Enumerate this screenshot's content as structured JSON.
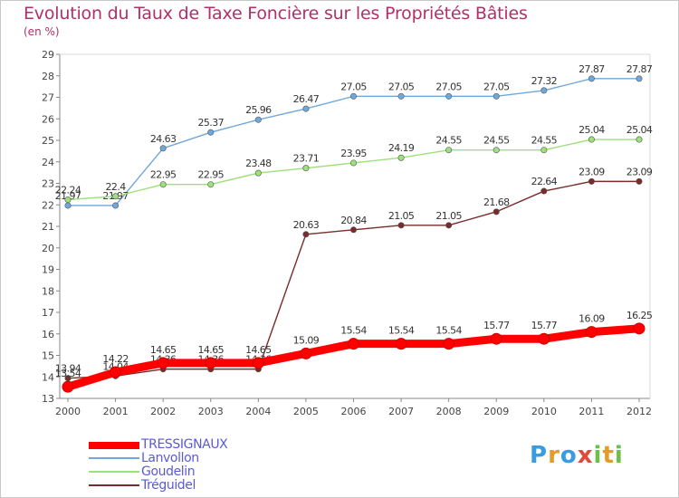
{
  "header": {
    "title": "Evolution du Taux de Taxe Foncière sur les Propriétés Bâties",
    "subtitle": "(en %)"
  },
  "logo": {
    "text": "Proxiti",
    "letters": [
      "P",
      "r",
      "o",
      "x",
      "i",
      "t",
      "i"
    ]
  },
  "chart_data": {
    "type": "line",
    "categories": [
      "2000",
      "2001",
      "2002",
      "2003",
      "2004",
      "2005",
      "2006",
      "2007",
      "2008",
      "2009",
      "2010",
      "2011",
      "2012"
    ],
    "ylim": [
      13,
      29
    ],
    "yticks": [
      13,
      14,
      15,
      16,
      17,
      18,
      19,
      20,
      21,
      22,
      23,
      24,
      25,
      26,
      27,
      28,
      29
    ],
    "grid": false,
    "legend_position": "bottom-left",
    "series": [
      {
        "name": "TRESSIGNAUX",
        "color": "#ff0000",
        "values": [
          13.54,
          14.22,
          14.65,
          14.65,
          14.65,
          15.09,
          15.54,
          15.54,
          15.54,
          15.77,
          15.77,
          16.09,
          16.25
        ],
        "labels": [
          "13.54",
          "14.22",
          "14.65",
          "14.65",
          "14.65",
          "15.09",
          "15.54",
          "15.54",
          "15.54",
          "15.77",
          "15.77",
          "16.09",
          "16.25"
        ]
      },
      {
        "name": "Lanvollon",
        "color": "#6fa8dc",
        "values": [
          21.97,
          21.97,
          24.63,
          25.37,
          25.96,
          26.47,
          27.05,
          27.05,
          27.05,
          27.05,
          27.32,
          27.87,
          27.87
        ],
        "labels": [
          "21.97",
          "21.97",
          "24.63",
          "25.37",
          "25.96",
          "26.47",
          "27.05",
          "27.05",
          "27.05",
          "27.05",
          "27.32",
          "27.87",
          "27.87"
        ]
      },
      {
        "name": "Goudelin",
        "color": "#9ee07a",
        "values": [
          22.24,
          22.4,
          22.95,
          22.95,
          23.48,
          23.71,
          23.95,
          24.19,
          24.55,
          24.55,
          24.55,
          25.04,
          25.04
        ],
        "labels": [
          "22.24",
          "22.4",
          "22.95",
          "22.95",
          "23.48",
          "23.71",
          "23.95",
          "24.19",
          "24.55",
          "24.55",
          "24.55",
          "25.04",
          "25.04"
        ]
      },
      {
        "name": "Tréguidel",
        "color": "#7a2b2b",
        "values": [
          13.94,
          14.04,
          14.36,
          14.36,
          14.36,
          20.63,
          20.84,
          21.05,
          21.05,
          21.68,
          22.64,
          23.09,
          23.09
        ],
        "labels": [
          "13.94",
          "14.04",
          "14.36",
          "14.36",
          "14.36",
          "20.63",
          "20.84",
          "21.05",
          "21.05",
          "21.68",
          "22.64",
          "23.09",
          "23.09"
        ]
      }
    ]
  }
}
